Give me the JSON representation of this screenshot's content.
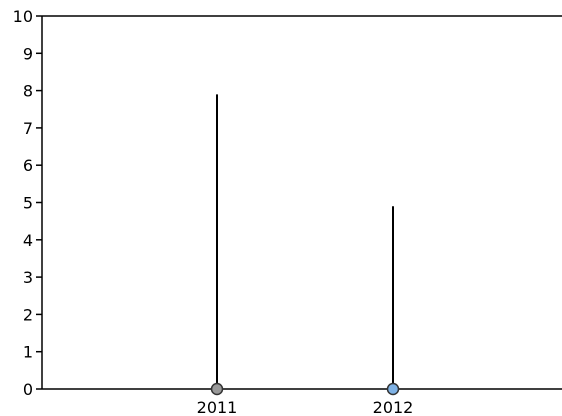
{
  "chart_data": {
    "type": "bar",
    "categories": [
      "2011",
      "2012"
    ],
    "series": [
      {
        "values": [
          7.9,
          4.9
        ],
        "marker_colors": [
          "#999999",
          "#7fb2e5"
        ]
      }
    ],
    "title": "",
    "xlabel": "",
    "ylabel": "",
    "ylim": [
      0,
      10
    ],
    "yticks": [
      "0",
      "1",
      "2",
      "3",
      "4",
      "5",
      "6",
      "7",
      "8",
      "9",
      "10"
    ],
    "grid": false,
    "legend": "none"
  },
  "colors": {
    "axis": "#000000",
    "stem": "#000000",
    "background": "#ffffff"
  }
}
